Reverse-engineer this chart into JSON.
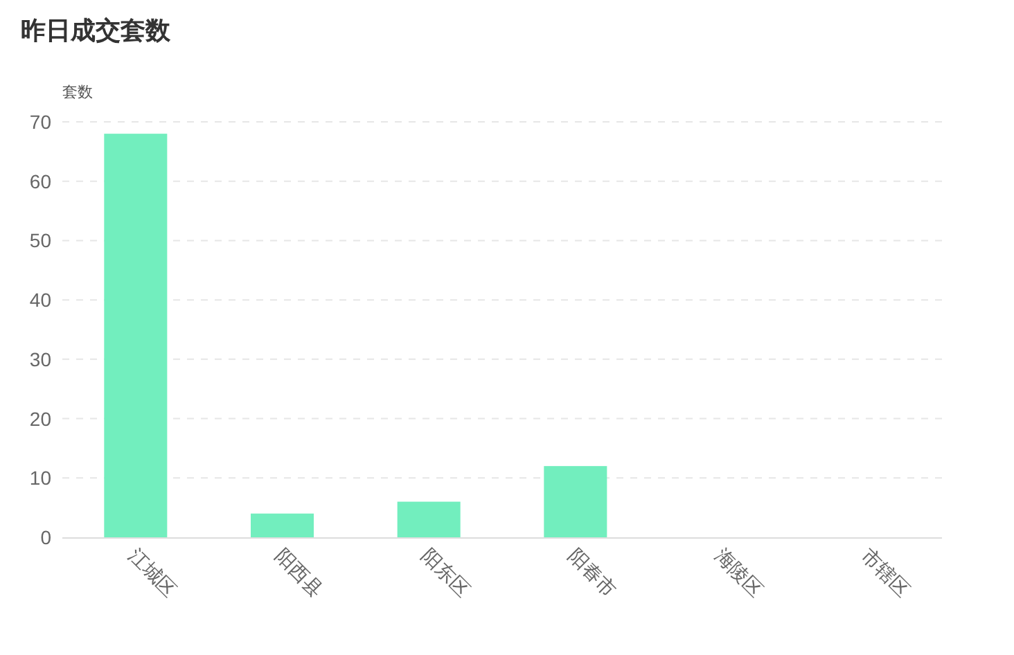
{
  "chart_data": {
    "type": "bar",
    "title": "昨日成交套数",
    "ylabel": "套数",
    "categories": [
      "江城区",
      "阳西县",
      "阳东区",
      "阳春市",
      "海陵区",
      "市辖区"
    ],
    "values": [
      68,
      4,
      6,
      12,
      0,
      0
    ],
    "color": "#72eebe",
    "ylim": [
      0,
      70
    ],
    "yticks": [
      0,
      10,
      20,
      30,
      40,
      50,
      60,
      70
    ],
    "grid": "y"
  }
}
